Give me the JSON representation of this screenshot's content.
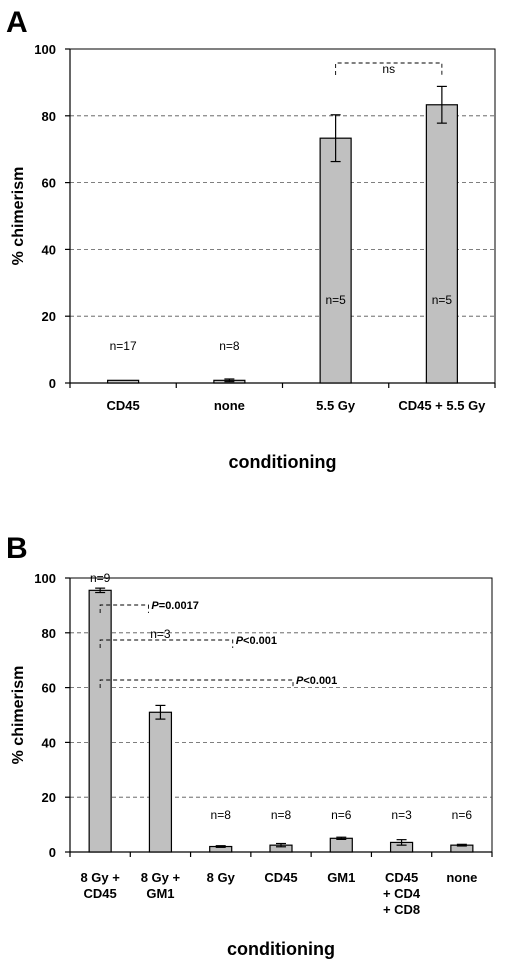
{
  "chart_data": [
    {
      "panel": "A",
      "type": "bar",
      "categories": [
        "CD45",
        "none",
        "5.5 Gy",
        "CD45 + 5.5 Gy"
      ],
      "values": [
        0.8,
        0.8,
        73.3,
        83.3
      ],
      "errors": [
        0,
        0.4,
        7.0,
        5.5
      ],
      "n_labels": [
        "n=17",
        "n=8",
        "n=5",
        "n=5"
      ],
      "ylabel": "% chimerism",
      "xlabel": "conditioning",
      "ylim": [
        0,
        100
      ],
      "yticks": [
        "0",
        "20",
        "40",
        "60",
        "80",
        "100"
      ],
      "grid": true,
      "annotations": [
        {
          "from": "5.5 Gy",
          "to": "CD45 + 5.5 Gy",
          "text": "ns"
        }
      ]
    },
    {
      "panel": "B",
      "type": "bar",
      "categories": [
        [
          "8 Gy +",
          "CD45"
        ],
        [
          "8 Gy +",
          "GM1"
        ],
        [
          "8 Gy"
        ],
        [
          "CD45"
        ],
        [
          "GM1"
        ],
        [
          "CD45",
          "+ CD4",
          "+ CD8"
        ],
        [
          "none"
        ]
      ],
      "values": [
        95.5,
        51.0,
        2.0,
        2.5,
        5.0,
        3.5,
        2.5
      ],
      "errors": [
        0.8,
        2.5,
        0.3,
        0.6,
        0.4,
        1.0,
        0.3
      ],
      "n_labels": [
        "n=9",
        "n=3",
        "n=8",
        "n=8",
        "n=6",
        "n=3",
        "n=6"
      ],
      "ylabel": "% chimerism",
      "xlabel": "conditioning",
      "ylim": [
        0,
        100
      ],
      "yticks": [
        "0",
        "20",
        "40",
        "60",
        "80",
        "100"
      ],
      "grid": true,
      "annotations": [
        {
          "from": "8 Gy + CD45",
          "to": "8 Gy + GM1",
          "label": "P",
          "text": " =0.0017"
        },
        {
          "from": "8 Gy + CD45",
          "to": "8 Gy",
          "label": "P",
          "text": " <0.001"
        },
        {
          "from": "8 Gy + CD45",
          "to": "CD45",
          "label": "P",
          "text": " <0.001"
        }
      ]
    }
  ]
}
